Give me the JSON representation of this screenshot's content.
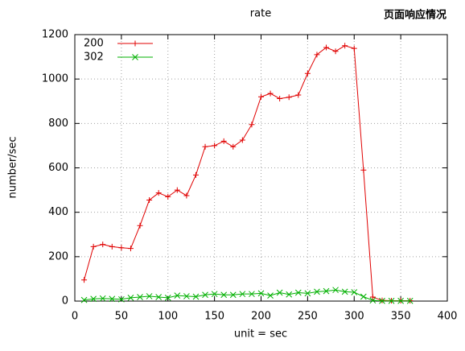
{
  "chart_data": {
    "type": "line",
    "title": "rate",
    "annotation": "页面响应情况",
    "x_label": "unit = sec",
    "y_label": "number/sec",
    "x": [
      10,
      20,
      30,
      40,
      50,
      60,
      70,
      80,
      90,
      100,
      110,
      120,
      130,
      140,
      150,
      160,
      170,
      180,
      190,
      200,
      210,
      220,
      230,
      240,
      250,
      260,
      270,
      280,
      290,
      300,
      310,
      320,
      330,
      340,
      350,
      360
    ],
    "series": [
      {
        "name": "200",
        "color": "#e00000",
        "marker": "plus",
        "values": [
          95,
          245,
          255,
          245,
          240,
          237,
          340,
          455,
          487,
          470,
          500,
          475,
          568,
          695,
          700,
          720,
          695,
          725,
          795,
          920,
          935,
          912,
          918,
          928,
          1025,
          1110,
          1142,
          1125,
          1150,
          1138,
          590,
          18,
          3,
          2,
          2,
          2
        ]
      },
      {
        "name": "302",
        "color": "#00b000",
        "marker": "cross",
        "values": [
          5,
          10,
          12,
          10,
          8,
          15,
          18,
          22,
          18,
          15,
          25,
          22,
          20,
          28,
          32,
          28,
          28,
          32,
          32,
          35,
          25,
          38,
          30,
          38,
          35,
          42,
          45,
          50,
          42,
          40,
          20,
          3,
          1,
          1,
          1,
          1
        ]
      }
    ],
    "xlim": [
      0,
      400
    ],
    "xticks": [
      0,
      50,
      100,
      150,
      200,
      250,
      300,
      350,
      400
    ],
    "ylim": [
      0,
      1200
    ],
    "yticks": [
      0,
      200,
      400,
      600,
      800,
      1000,
      1200
    ],
    "grid": true,
    "legend": "top-left"
  }
}
